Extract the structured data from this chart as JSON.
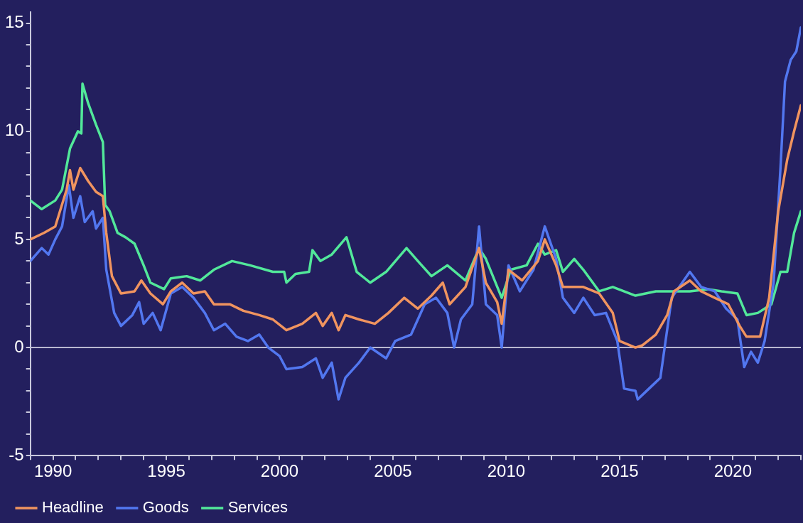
{
  "chart_data": {
    "type": "line",
    "xlim": [
      1989,
      2023
    ],
    "xticks": [
      {
        "value": 1989,
        "label": null
      },
      1990,
      {
        "value": 1991,
        "label": null
      },
      {
        "value": 1992,
        "label": null
      },
      {
        "value": 1993,
        "label": null
      },
      {
        "value": 1994,
        "label": null
      },
      1995,
      {
        "value": 1996,
        "label": null
      },
      {
        "value": 1997,
        "label": null
      },
      {
        "value": 1998,
        "label": null
      },
      {
        "value": 1999,
        "label": null
      },
      2000,
      {
        "value": 2001,
        "label": null
      },
      {
        "value": 2002,
        "label": null
      },
      {
        "value": 2003,
        "label": null
      },
      {
        "value": 2004,
        "label": null
      },
      2005,
      {
        "value": 2006,
        "label": null
      },
      {
        "value": 2007,
        "label": null
      },
      {
        "value": 2008,
        "label": null
      },
      {
        "value": 2009,
        "label": null
      },
      2010,
      {
        "value": 2011,
        "label": null
      },
      {
        "value": 2012,
        "label": null
      },
      {
        "value": 2013,
        "label": null
      },
      {
        "value": 2014,
        "label": null
      },
      2015,
      {
        "value": 2016,
        "label": null
      },
      {
        "value": 2017,
        "label": null
      },
      {
        "value": 2018,
        "label": null
      },
      {
        "value": 2019,
        "label": null
      },
      2020,
      {
        "value": 2021,
        "label": null
      },
      {
        "value": 2022,
        "label": null
      },
      {
        "value": 2023,
        "label": null
      }
    ],
    "ylim": [
      -5,
      15.5
    ],
    "yticks": [
      -5,
      {
        "value": -4,
        "label": null
      },
      {
        "value": -3,
        "label": null
      },
      {
        "value": -2,
        "label": null
      },
      {
        "value": -1,
        "label": null
      },
      0,
      {
        "value": 1,
        "label": null
      },
      {
        "value": 2,
        "label": null
      },
      {
        "value": 3,
        "label": null
      },
      {
        "value": 4,
        "label": null
      },
      5,
      {
        "value": 6,
        "label": null
      },
      {
        "value": 7,
        "label": null
      },
      {
        "value": 8,
        "label": null
      },
      {
        "value": 9,
        "label": null
      },
      10,
      {
        "value": 11,
        "label": null
      },
      {
        "value": 12,
        "label": null
      },
      {
        "value": 13,
        "label": null
      },
      {
        "value": 14,
        "label": null
      },
      15
    ],
    "ref_lines": [
      {
        "axis": "y",
        "value": 0,
        "color": "#b8b8d0"
      }
    ],
    "legend": "bottom",
    "marker": "none",
    "line_style": "solid",
    "grid": false,
    "series": [
      {
        "name": "Headline",
        "color": "#f0945f",
        "x": [
          1989.0,
          1989.6,
          1990.1,
          1990.6,
          1990.75,
          1990.9,
          1991.2,
          1991.55,
          1991.9,
          1992.2,
          1992.35,
          1992.6,
          1993.0,
          1993.6,
          1993.9,
          1994.3,
          1994.85,
          1995.2,
          1995.7,
          1996.2,
          1996.7,
          1997.1,
          1997.8,
          1998.4,
          1999.1,
          1999.7,
          2000.3,
          2001.0,
          2001.6,
          2001.9,
          2002.3,
          2002.6,
          2002.9,
          2003.5,
          2004.2,
          2004.8,
          2005.5,
          2006.1,
          2006.7,
          2007.2,
          2007.5,
          2008.2,
          2008.8,
          2009.1,
          2009.6,
          2009.8,
          2010.1,
          2010.7,
          2011.4,
          2011.7,
          2012.2,
          2012.5,
          2013.4,
          2014.1,
          2014.7,
          2015.0,
          2015.7,
          2016.0,
          2016.6,
          2017.1,
          2017.4,
          2018.1,
          2018.6,
          2019.2,
          2019.8,
          2020.3,
          2020.6,
          2021.2,
          2021.6,
          2022.0,
          2022.4,
          2022.7,
          2023.0
        ],
        "values": [
          5.0,
          5.3,
          5.6,
          7.3,
          8.2,
          7.3,
          8.3,
          7.7,
          7.2,
          7.0,
          5.3,
          3.3,
          2.5,
          2.6,
          3.1,
          2.5,
          2.0,
          2.6,
          3.0,
          2.5,
          2.6,
          2.0,
          2.0,
          1.7,
          1.5,
          1.3,
          0.8,
          1.1,
          1.6,
          1.0,
          1.6,
          0.8,
          1.5,
          1.3,
          1.1,
          1.6,
          2.3,
          1.8,
          2.4,
          3.0,
          2.0,
          2.8,
          4.6,
          3.0,
          2.1,
          1.1,
          3.6,
          3.1,
          4.0,
          5.0,
          3.8,
          2.8,
          2.8,
          2.5,
          1.6,
          0.3,
          0.0,
          0.1,
          0.6,
          1.5,
          2.6,
          3.1,
          2.6,
          2.3,
          2.0,
          1.0,
          0.5,
          0.5,
          2.3,
          6.3,
          8.7,
          10.0,
          11.2
        ]
      },
      {
        "name": "Goods",
        "color": "#5277f0",
        "x": [
          1989.0,
          1989.5,
          1989.8,
          1990.1,
          1990.4,
          1990.7,
          1990.9,
          1991.2,
          1991.4,
          1991.75,
          1991.9,
          1992.2,
          1992.35,
          1992.7,
          1993.0,
          1993.5,
          1993.8,
          1994.0,
          1994.4,
          1994.75,
          1995.2,
          1995.7,
          1996.2,
          1996.7,
          1997.1,
          1997.6,
          1998.1,
          1998.6,
          1999.1,
          1999.5,
          2000.0,
          2000.3,
          2001.0,
          2001.6,
          2001.9,
          2002.3,
          2002.6,
          2002.9,
          2003.5,
          2004.0,
          2004.7,
          2005.1,
          2005.8,
          2006.4,
          2006.9,
          2007.4,
          2007.7,
          2008.0,
          2008.5,
          2008.8,
          2009.1,
          2009.6,
          2009.8,
          2010.1,
          2010.6,
          2011.2,
          2011.7,
          2012.2,
          2012.5,
          2013.0,
          2013.4,
          2013.9,
          2014.4,
          2014.9,
          2015.2,
          2015.7,
          2015.8,
          2016.3,
          2016.8,
          2017.3,
          2018.1,
          2018.6,
          2019.2,
          2019.7,
          2020.2,
          2020.5,
          2020.8,
          2021.1,
          2021.4,
          2021.8,
          2022.1,
          2022.3,
          2022.55,
          2022.8,
          2023.0
        ],
        "values": [
          4.0,
          4.6,
          4.3,
          5.0,
          5.6,
          7.5,
          6.0,
          7.0,
          5.8,
          6.3,
          5.5,
          6.0,
          3.6,
          1.6,
          1.0,
          1.5,
          2.1,
          1.1,
          1.6,
          0.8,
          2.5,
          2.8,
          2.3,
          1.6,
          0.8,
          1.1,
          0.5,
          0.3,
          0.6,
          0.0,
          -0.4,
          -1.0,
          -0.9,
          -0.5,
          -1.4,
          -0.7,
          -2.4,
          -1.4,
          -0.7,
          0.0,
          -0.5,
          0.3,
          0.6,
          2.0,
          2.3,
          1.6,
          0.0,
          1.3,
          2.0,
          5.6,
          2.0,
          1.5,
          0.0,
          3.8,
          2.6,
          3.6,
          5.6,
          4.1,
          2.3,
          1.6,
          2.3,
          1.5,
          1.6,
          0.3,
          -1.9,
          -2.0,
          -2.4,
          -1.9,
          -1.4,
          2.3,
          3.5,
          2.8,
          2.6,
          1.8,
          1.3,
          -0.9,
          -0.2,
          -0.7,
          0.3,
          3.0,
          8.3,
          12.3,
          13.3,
          13.7,
          14.8
        ]
      },
      {
        "name": "Services",
        "color": "#52e89a",
        "x": [
          1989.0,
          1989.5,
          1990.1,
          1990.4,
          1990.75,
          1991.1,
          1991.25,
          1991.3,
          1991.55,
          1991.9,
          1992.2,
          1992.3,
          1992.5,
          1992.85,
          1993.2,
          1993.6,
          1994.0,
          1994.3,
          1994.9,
          1995.2,
          1995.9,
          1996.5,
          1997.1,
          1997.9,
          1998.7,
          1999.7,
          2000.2,
          2000.3,
          2000.7,
          2001.3,
          2001.45,
          2001.8,
          2002.3,
          2002.95,
          2003.4,
          2004.0,
          2004.7,
          2005.6,
          2006.1,
          2006.7,
          2007.4,
          2008.2,
          2008.8,
          2009.1,
          2009.8,
          2010.2,
          2010.9,
          2011.4,
          2011.7,
          2012.2,
          2012.5,
          2013.0,
          2013.4,
          2014.1,
          2014.7,
          2015.7,
          2016.6,
          2017.4,
          2018.1,
          2018.9,
          2019.5,
          2020.2,
          2020.6,
          2021.1,
          2021.7,
          2022.1,
          2022.4,
          2022.7,
          2023.0
        ],
        "values": [
          6.8,
          6.4,
          6.8,
          7.3,
          9.2,
          10.0,
          9.9,
          12.2,
          11.3,
          10.3,
          9.5,
          6.6,
          6.3,
          5.3,
          5.1,
          4.8,
          3.8,
          3.0,
          2.7,
          3.2,
          3.3,
          3.1,
          3.6,
          4.0,
          3.8,
          3.5,
          3.5,
          3.0,
          3.4,
          3.5,
          4.5,
          4.0,
          4.3,
          5.1,
          3.5,
          3.0,
          3.5,
          4.6,
          4.0,
          3.3,
          3.8,
          3.1,
          4.6,
          4.1,
          2.3,
          3.6,
          3.8,
          4.8,
          4.3,
          4.5,
          3.5,
          4.1,
          3.6,
          2.6,
          2.8,
          2.4,
          2.6,
          2.6,
          2.6,
          2.7,
          2.6,
          2.5,
          1.5,
          1.6,
          2.0,
          3.5,
          3.5,
          5.3,
          6.3
        ]
      }
    ]
  }
}
